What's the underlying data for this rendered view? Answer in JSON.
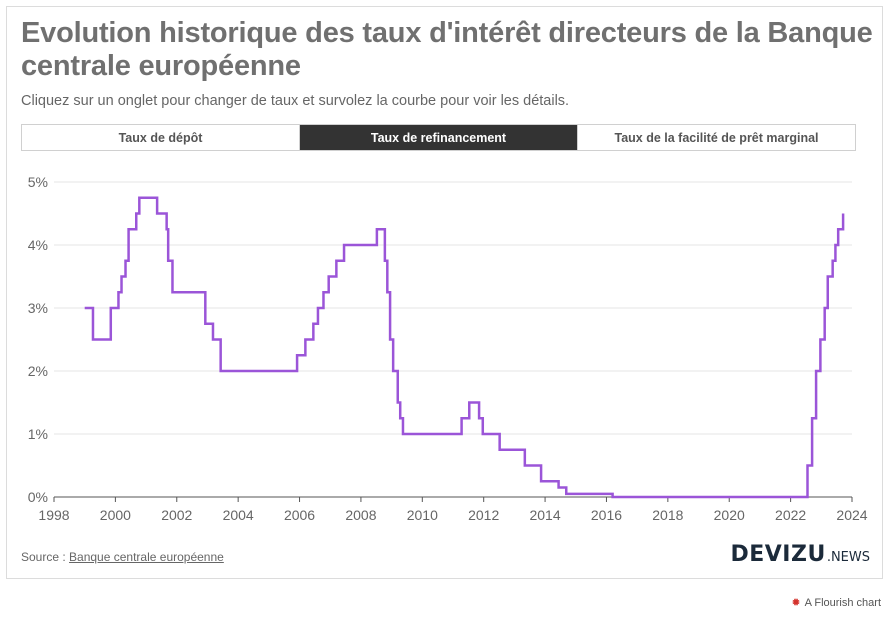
{
  "header": {
    "title": "Evolution historique des taux d'intérêt directeurs de la Banque centrale européenne",
    "subtitle": "Cliquez sur un onglet pour changer de taux et survolez la courbe pour voir les détails."
  },
  "tabs": [
    {
      "label": "Taux de dépôt",
      "active": false
    },
    {
      "label": "Taux de refinancement",
      "active": true
    },
    {
      "label": "Taux de la facilité de prêt marginal",
      "active": false
    }
  ],
  "footer": {
    "source_prefix": "Source : ",
    "source_link": "Banque centrale européenne",
    "logo_main": "DEVIZU",
    "logo_suffix": ".NEWS",
    "credit_icon": "flourish-burst-icon",
    "credit": "A Flourish chart"
  },
  "colors": {
    "line": "#9b55d8",
    "active_tab": "#333333",
    "grid": "#e6e6e6",
    "axis": "#555555"
  },
  "chart_data": {
    "type": "line",
    "step": true,
    "title": "",
    "xlabel": "",
    "ylabel": "",
    "xlim": [
      1998,
      2024
    ],
    "ylim": [
      0,
      5
    ],
    "x_ticks": [
      1998,
      2000,
      2002,
      2004,
      2006,
      2008,
      2010,
      2012,
      2014,
      2016,
      2018,
      2020,
      2022,
      2024
    ],
    "y_ticks": [
      0,
      1,
      2,
      3,
      4,
      5
    ],
    "y_tick_labels": [
      "0%",
      "1%",
      "2%",
      "3%",
      "4%",
      "5%"
    ],
    "grid": true,
    "legend": "none",
    "series": [
      {
        "values": [
          [
            1999.0,
            3.0
          ],
          [
            1999.27,
            2.5
          ],
          [
            1999.85,
            3.0
          ],
          [
            2000.1,
            3.25
          ],
          [
            2000.2,
            3.5
          ],
          [
            2000.33,
            3.75
          ],
          [
            2000.43,
            4.25
          ],
          [
            2000.68,
            4.5
          ],
          [
            2000.78,
            4.75
          ],
          [
            2001.36,
            4.5
          ],
          [
            2001.67,
            4.25
          ],
          [
            2001.72,
            3.75
          ],
          [
            2001.86,
            3.25
          ],
          [
            2002.93,
            2.75
          ],
          [
            2003.18,
            2.5
          ],
          [
            2003.43,
            2.0
          ],
          [
            2005.92,
            2.25
          ],
          [
            2006.19,
            2.5
          ],
          [
            2006.45,
            2.75
          ],
          [
            2006.6,
            3.0
          ],
          [
            2006.78,
            3.25
          ],
          [
            2006.95,
            3.5
          ],
          [
            2007.2,
            3.75
          ],
          [
            2007.45,
            4.0
          ],
          [
            2008.52,
            4.25
          ],
          [
            2008.78,
            3.75
          ],
          [
            2008.86,
            3.25
          ],
          [
            2008.95,
            2.5
          ],
          [
            2009.05,
            2.0
          ],
          [
            2009.2,
            1.5
          ],
          [
            2009.28,
            1.25
          ],
          [
            2009.37,
            1.0
          ],
          [
            2011.28,
            1.25
          ],
          [
            2011.53,
            1.5
          ],
          [
            2011.85,
            1.25
          ],
          [
            2011.97,
            1.0
          ],
          [
            2012.52,
            0.75
          ],
          [
            2013.34,
            0.5
          ],
          [
            2013.87,
            0.25
          ],
          [
            2014.44,
            0.15
          ],
          [
            2014.69,
            0.05
          ],
          [
            2016.2,
            0.0
          ],
          [
            2022.55,
            0.5
          ],
          [
            2022.7,
            1.25
          ],
          [
            2022.83,
            2.0
          ],
          [
            2022.97,
            2.5
          ],
          [
            2023.11,
            3.0
          ],
          [
            2023.21,
            3.5
          ],
          [
            2023.37,
            3.75
          ],
          [
            2023.46,
            4.0
          ],
          [
            2023.55,
            4.25
          ],
          [
            2023.71,
            4.5
          ]
        ]
      }
    ]
  }
}
